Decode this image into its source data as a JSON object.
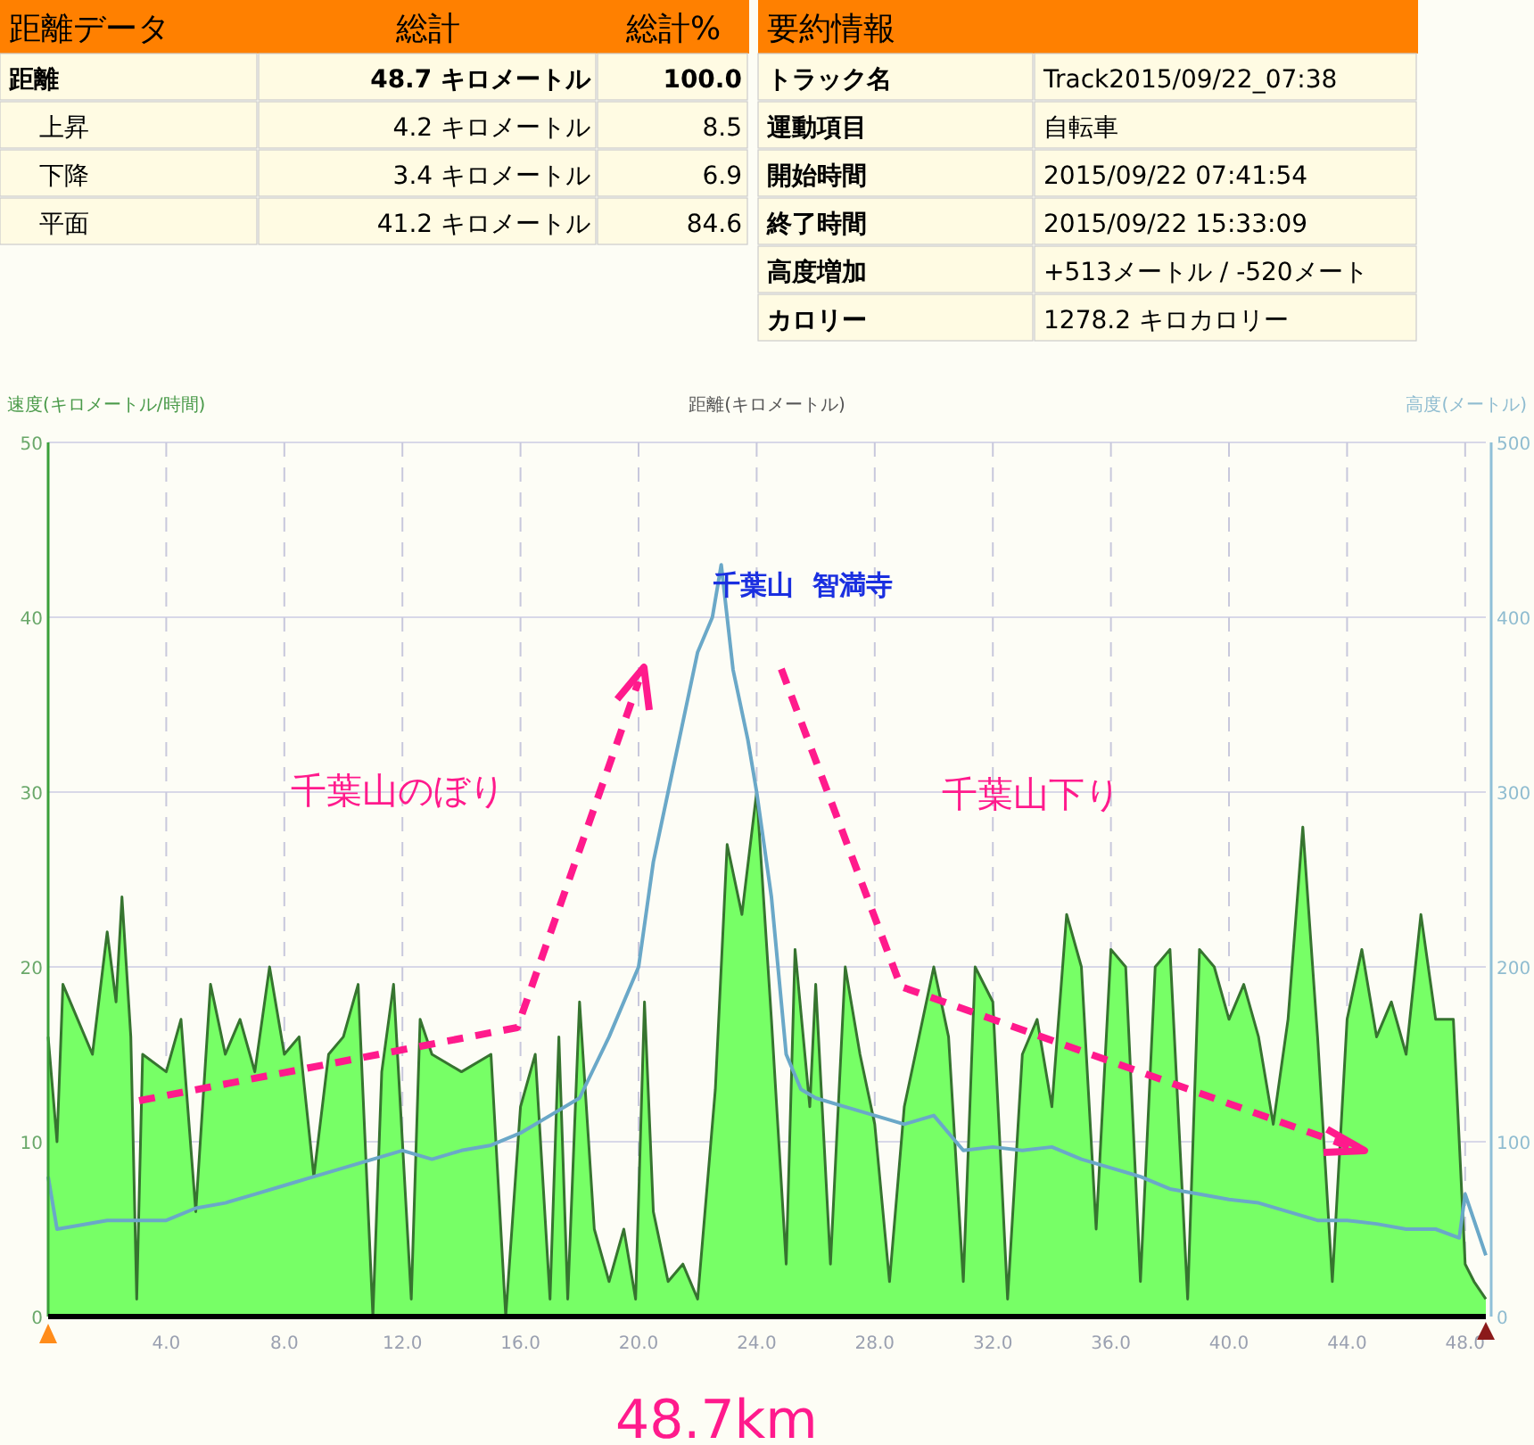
{
  "chart_data": [
    {
      "type": "other",
      "title": "距離データ",
      "annotations": [
        "総計",
        "総計%",
        "距離",
        "48.7 キロメートル",
        "100.0",
        "上昇",
        "4.2 キロメートル",
        "8.5",
        "下降",
        "3.4 キロメートル",
        "6.9",
        "平面",
        "41.2 キロメートル",
        "84.6"
      ]
    },
    {
      "type": "other",
      "title": "要約情報",
      "annotations": [
        "トラック名",
        "Track2015/09/22_07:38",
        "運動項目",
        "自転車",
        "開始時間",
        "2015/09/22 07:41:54",
        "終了時間",
        "2015/09/22 15:33:09",
        "高度増加",
        "+513メートル  / -520メート",
        "カロリー",
        "1278.2 キロカロリー"
      ]
    },
    {
      "type": "area",
      "xlabel": "距離(キロメートル)",
      "ylabel": "速度(キロメートル/時間)",
      "y2label": "高度(メートル)",
      "xlim": [
        0,
        48.7
      ],
      "xticks": [
        {
          "value": 4,
          "label": "4.0"
        },
        {
          "value": 8,
          "label": "8.0"
        },
        {
          "value": 12,
          "label": "12.0"
        },
        {
          "value": 16,
          "label": "16.0"
        },
        {
          "value": 20,
          "label": "20.0"
        },
        {
          "value": 24,
          "label": "24.0"
        },
        {
          "value": 28,
          "label": "28.0"
        },
        {
          "value": 32,
          "label": "32.0"
        },
        {
          "value": 36,
          "label": "36.0"
        },
        {
          "value": 40,
          "label": "40.0"
        },
        {
          "value": 44,
          "label": "44.0"
        },
        {
          "value": 48,
          "label": "48.0"
        }
      ],
      "ylim": [
        0,
        50
      ],
      "yticks": [
        0,
        10,
        20,
        30,
        40,
        50
      ],
      "y2lim": [
        0,
        500
      ],
      "y2ticks": [
        0,
        100,
        200,
        300,
        400,
        500
      ],
      "grid": true,
      "series": [
        {
          "type": "area",
          "color": "#77ff66",
          "x": [
            0,
            0.3,
            0.5,
            1,
            1.5,
            2,
            2.3,
            2.5,
            2.8,
            3,
            3.2,
            4,
            4.5,
            5,
            5.5,
            6,
            6.5,
            7,
            7.5,
            8,
            8.5,
            9,
            9.5,
            10,
            10.5,
            11,
            11.3,
            11.7,
            12,
            12.3,
            12.6,
            13,
            14,
            15,
            15.5,
            16,
            16.5,
            17,
            17.3,
            17.6,
            18,
            18.5,
            19,
            19.5,
            19.9,
            20.2,
            20.5,
            21,
            21.5,
            22,
            22.6,
            23,
            23.5,
            24,
            24.5,
            25,
            25.3,
            25.8,
            26,
            26.5,
            27,
            27.5,
            28,
            28.5,
            29,
            30,
            30.5,
            31,
            31.4,
            32,
            32.5,
            33,
            33.5,
            34,
            34.5,
            35,
            35.5,
            36,
            36.5,
            37,
            37.5,
            38,
            38.6,
            39,
            39.5,
            40,
            40.5,
            41,
            41.5,
            42,
            42.5,
            43,
            43.5,
            44,
            44.5,
            45,
            45.5,
            46,
            46.5,
            47,
            47.6,
            48,
            48.3,
            48.7
          ],
          "values": [
            16,
            10,
            19,
            17,
            15,
            22,
            18,
            24,
            16,
            1,
            15,
            14,
            17,
            6,
            19,
            15,
            17,
            14,
            20,
            15,
            16,
            8,
            15,
            16,
            19,
            0,
            14,
            19,
            10,
            1,
            17,
            15,
            14,
            15,
            0,
            12,
            15,
            1,
            16,
            1,
            18,
            5,
            2,
            5,
            1,
            18,
            6,
            2,
            3,
            1,
            13,
            27,
            23,
            30,
            17,
            3,
            21,
            12,
            19,
            3,
            20,
            15,
            11,
            2,
            12,
            20,
            16,
            2,
            20,
            18,
            1,
            15,
            17,
            12,
            23,
            20,
            5,
            21,
            20,
            2,
            20,
            21,
            1,
            21,
            20,
            17,
            19,
            16,
            11,
            17,
            28,
            16,
            2,
            17,
            21,
            16,
            18,
            15,
            23,
            17,
            17,
            3,
            2,
            1
          ]
        },
        {
          "type": "line",
          "axis": "y2",
          "color": "#6aa8c8",
          "x": [
            0,
            0.3,
            1,
            2,
            3,
            4,
            5,
            6,
            7,
            8,
            9,
            10,
            11,
            12,
            13,
            14,
            15,
            16,
            17,
            18,
            19,
            20,
            20.5,
            21,
            21.5,
            22,
            22.5,
            22.8,
            23.2,
            23.7,
            24,
            24.5,
            25,
            25.5,
            26,
            27,
            28,
            29,
            30,
            31,
            32,
            33,
            34,
            35,
            36,
            37,
            38,
            39,
            40,
            41,
            42,
            43,
            44,
            45,
            46,
            47,
            47.8,
            48,
            48.3,
            48.7
          ],
          "values": [
            80,
            50,
            52,
            55,
            55,
            55,
            62,
            65,
            70,
            75,
            80,
            85,
            90,
            95,
            90,
            95,
            98,
            105,
            115,
            125,
            160,
            200,
            260,
            300,
            340,
            380,
            400,
            430,
            370,
            330,
            300,
            240,
            150,
            130,
            125,
            120,
            115,
            110,
            115,
            95,
            97,
            95,
            97,
            90,
            85,
            80,
            73,
            70,
            67,
            65,
            60,
            55,
            55,
            53,
            50,
            50,
            45,
            70,
            55,
            35
          ]
        }
      ],
      "annotations": [
        "千葉山  智満寺",
        "千葉山のぼり",
        "千葉山下り",
        "48.7km"
      ]
    }
  ]
}
